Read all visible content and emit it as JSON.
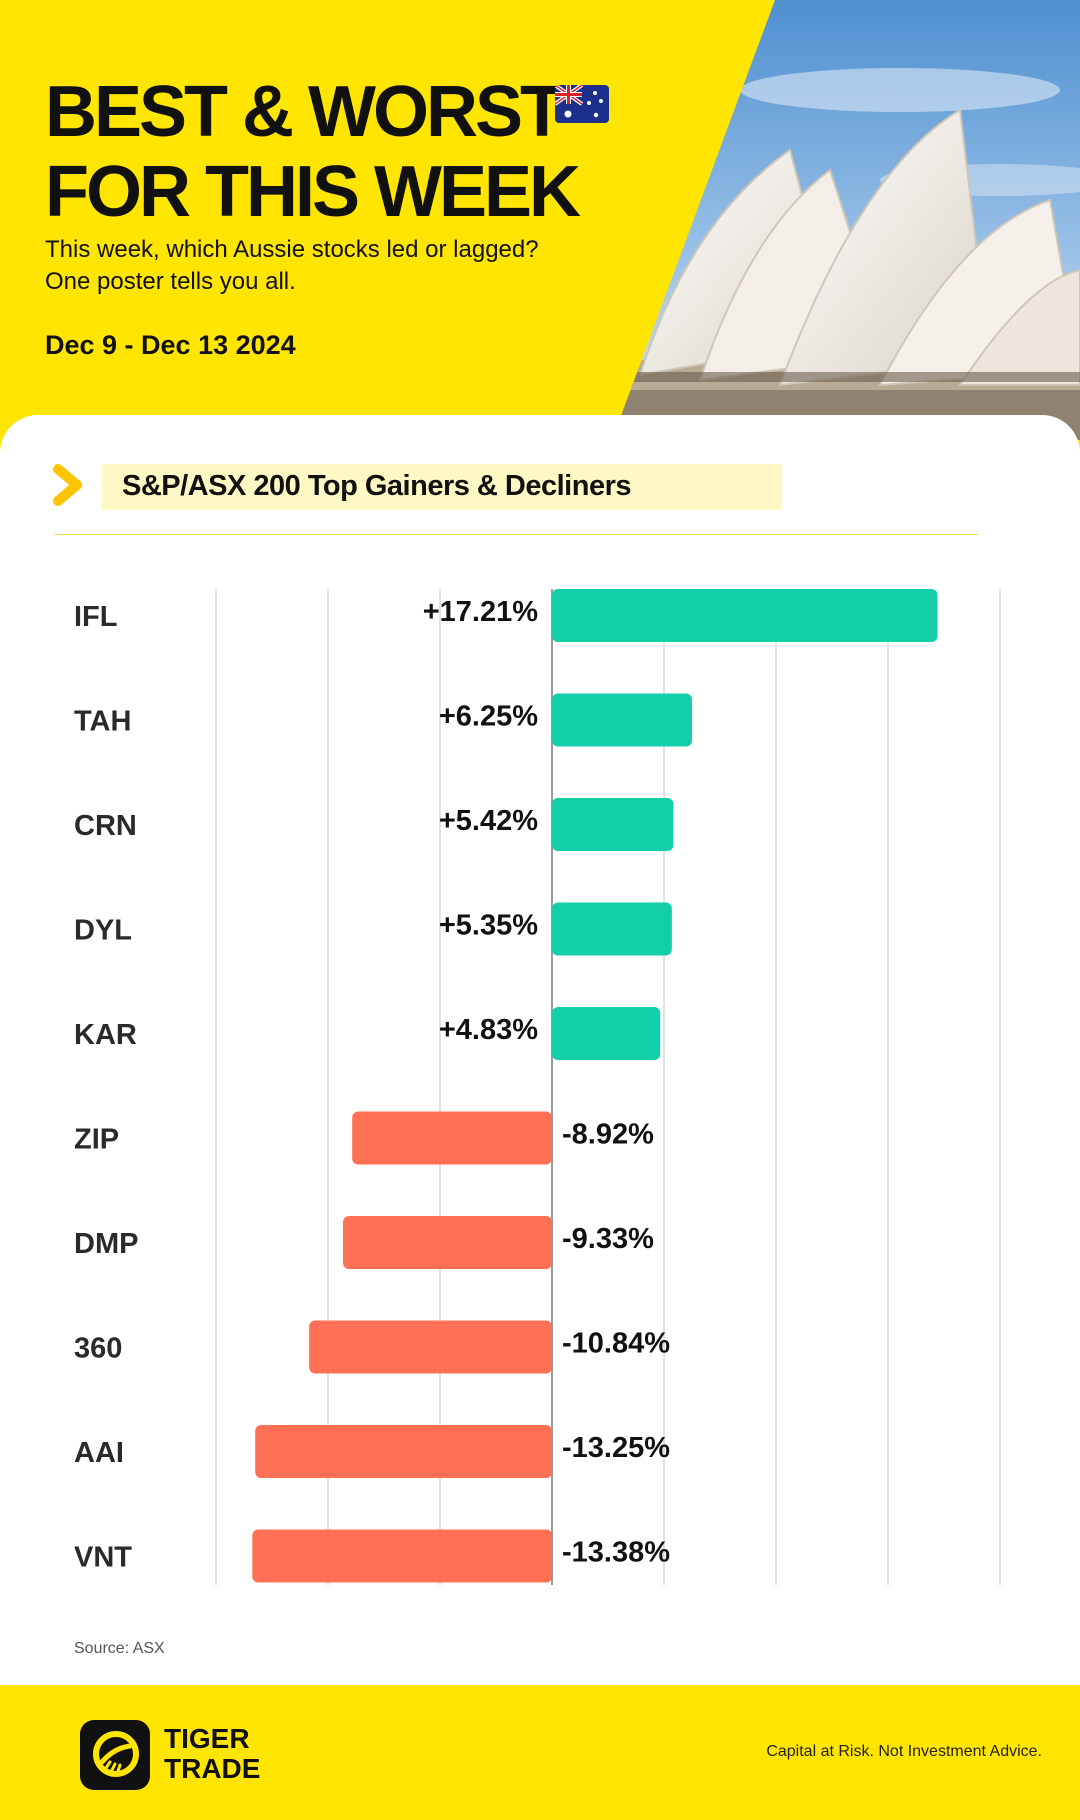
{
  "header": {
    "title_line1": "BEST & WORST",
    "title_line2": "FOR THIS WEEK",
    "subtitle_line1": "This week, which Aussie stocks led or lagged?",
    "subtitle_line2": "One poster tells you all.",
    "date_range": "Dec 9 - Dec 13 2024"
  },
  "section": {
    "title": "S&P/ASX 200 Top Gainers & Decliners"
  },
  "chart_data": {
    "type": "bar",
    "orientation": "horizontal",
    "title": "S&P/ASX 200 Top Gainers & Decliners",
    "categories": [
      "IFL",
      "TAH",
      "CRN",
      "DYL",
      "KAR",
      "ZIP",
      "DMP",
      "360",
      "AAI",
      "VNT"
    ],
    "values": [
      17.21,
      6.25,
      5.42,
      5.35,
      4.83,
      -8.92,
      -9.33,
      -10.84,
      -13.25,
      -13.38
    ],
    "labels": [
      "+17.21%",
      "+6.25%",
      "+5.42%",
      "+5.35%",
      "+4.83%",
      "-8.92%",
      "-9.33%",
      "-10.84%",
      "-13.25%",
      "-13.38%"
    ],
    "xlim": [
      -15,
      20
    ],
    "grid": true,
    "colors": {
      "gain": "#13cfa8",
      "loss": "#ff7055"
    }
  },
  "footer": {
    "source": "Source: ASX",
    "brand_line1": "TIGER",
    "brand_line2": "TRADE",
    "disclaimer": "Capital at Risk. Not Investment Advice."
  },
  "icons": [
    "australia-flag-icon",
    "chevron-right-icon",
    "tiger-logo-icon"
  ]
}
